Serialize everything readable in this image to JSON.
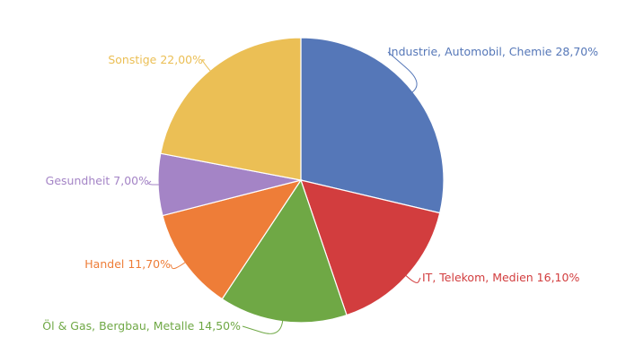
{
  "chart_data": {
    "type": "pie",
    "title": "",
    "start_angle_deg": 0,
    "direction": "clockwise",
    "slices": [
      {
        "label": "Industrie, Automobil, Chemie",
        "value": 28.7,
        "display": "Industrie, Automobil, Chemie 28,70%",
        "color": "#5577b8"
      },
      {
        "label": "IT, Telekom, Medien",
        "value": 16.1,
        "display": "IT, Telekom, Medien 16,10%",
        "color": "#d23d3e"
      },
      {
        "label": "Öl & Gas, Bergbau, Metalle",
        "value": 14.5,
        "display": "Öl & Gas, Bergbau, Metalle 14,50%",
        "color": "#6fa845"
      },
      {
        "label": "Handel",
        "value": 11.7,
        "display": "Handel 11,70%",
        "color": "#ee7d38"
      },
      {
        "label": "Gesundheit",
        "value": 7.0,
        "display": "Gesundheit 7,00%",
        "color": "#a484c6"
      },
      {
        "label": "Sonstige",
        "value": 22.0,
        "display": "Sonstige 22,00%",
        "color": "#ebbf55"
      }
    ]
  }
}
